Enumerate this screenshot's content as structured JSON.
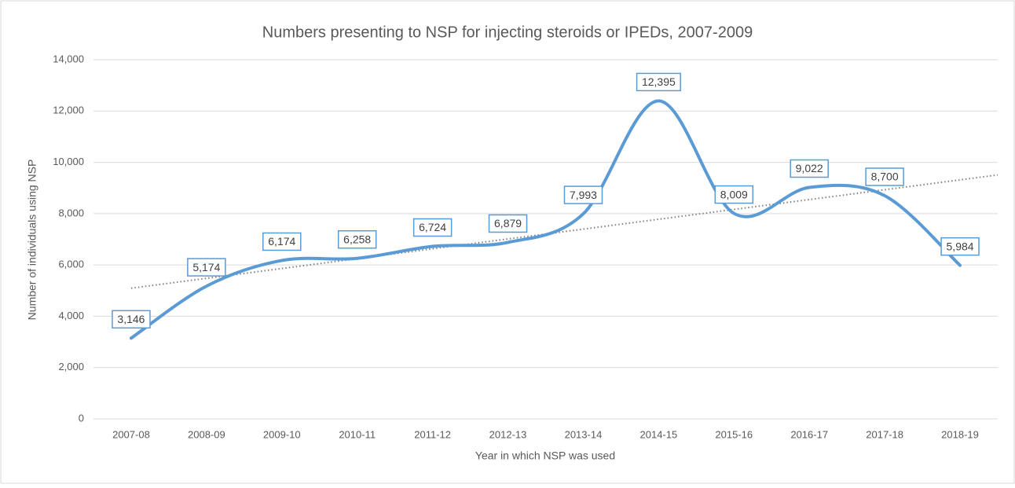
{
  "chart_data": {
    "type": "line",
    "title": "Numbers presenting to NSP for injecting steroids or IPEDs, 2007-2009",
    "x_label": "Year in which NSP was used",
    "y_label": "Number of individuals using NSP",
    "categories": [
      "2007-08",
      "2008-09",
      "2009-10",
      "2010-11",
      "2011-12",
      "2012-13",
      "2013-14",
      "2014-15",
      "2015-16",
      "2016-17",
      "2017-18",
      "2018-19"
    ],
    "values": [
      3146,
      5174,
      6174,
      6258,
      6724,
      6879,
      7993,
      12395,
      8009,
      9022,
      8700,
      5984
    ],
    "value_labels": [
      "3,146",
      "5,174",
      "6,174",
      "6,258",
      "6,724",
      "6,879",
      "7,993",
      "12,395",
      "8,009",
      "9,022",
      "8,700",
      "5,984"
    ],
    "color": "#5b9bd5",
    "smooth": true,
    "trendline": "linear",
    "ylim": [
      0,
      14000
    ],
    "yticks": [
      0,
      {
        "value": 2000,
        "label": "2,000"
      },
      {
        "value": 4000,
        "label": "4,000"
      },
      {
        "value": 6000,
        "label": "6,000"
      },
      {
        "value": 8000,
        "label": "8,000"
      },
      {
        "value": 10000,
        "label": "10,000"
      },
      {
        "value": 12000,
        "label": "12,000"
      },
      {
        "value": 14000,
        "label": "14,000"
      }
    ],
    "grid": true
  }
}
